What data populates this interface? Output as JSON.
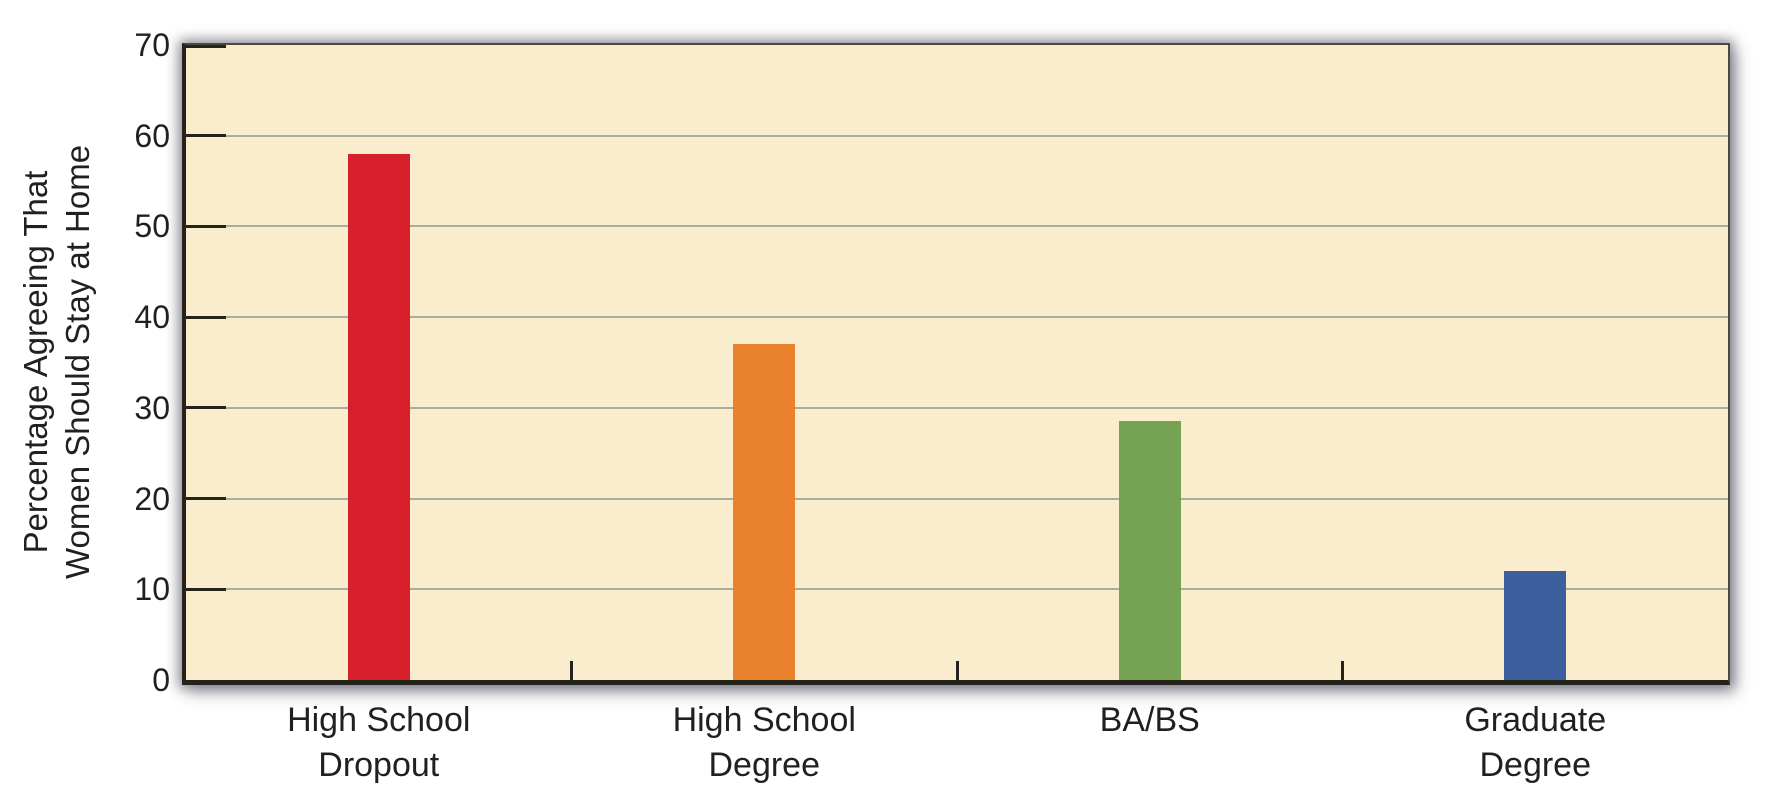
{
  "chart_data": {
    "type": "bar",
    "title": "",
    "xlabel": "",
    "ylabel": "Percentage Agreeing That Women Should Stay at Home",
    "ylabel_lines": [
      "Percentage Agreeing That",
      "Women Should Stay at Home"
    ],
    "categories": [
      "High School Dropout",
      "High School Degree",
      "BA/BS",
      "Graduate Degree"
    ],
    "category_label_lines": [
      [
        "High School",
        "Dropout"
      ],
      [
        "High School",
        "Degree"
      ],
      [
        "BA/BS"
      ],
      [
        "Graduate",
        "Degree"
      ]
    ],
    "values": [
      58,
      37,
      28.5,
      12
    ],
    "bar_colors": [
      "#D7202B",
      "#E8802C",
      "#76A254",
      "#3D5F9E"
    ],
    "ylim": [
      0,
      70
    ],
    "yticks": [
      0,
      10,
      20,
      30,
      40,
      50,
      60,
      70
    ],
    "grid": true,
    "legend": "none",
    "colors": {
      "plot_bg": "#FAEDCD",
      "gridline": "#A9ACA0",
      "axis": "#23231C",
      "text": "#231F20",
      "page_bg": "#FFFFFF"
    }
  }
}
